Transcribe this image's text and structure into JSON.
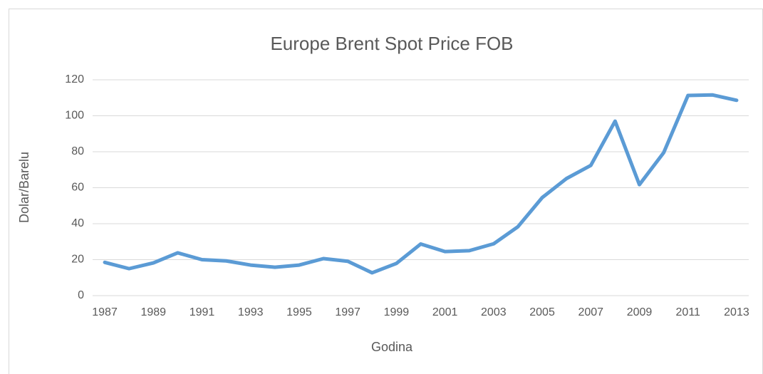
{
  "chart_data": {
    "type": "line",
    "title": "Europe Brent Spot Price FOB",
    "x_label": "Godina",
    "y_label": "Dolar/Barelu",
    "categories": [
      "1987",
      null,
      "1989",
      null,
      "1991",
      null,
      "1993",
      null,
      "1995",
      null,
      "1997",
      null,
      "1999",
      null,
      "2001",
      null,
      "2003",
      null,
      "2005",
      null,
      "2007",
      null,
      "2009",
      null,
      "2011",
      null,
      "2013"
    ],
    "series": [
      {
        "name": "Europe Brent Spot Price FOB",
        "color": "#5b9bd5",
        "values": [
          18.5,
          15,
          18.2,
          23.8,
          20,
          19.3,
          17,
          15.8,
          17,
          20.6,
          19.1,
          12.7,
          17.9,
          28.7,
          24.5,
          25,
          28.8,
          38.3,
          54.5,
          65.1,
          72.4,
          97,
          61.7,
          79.5,
          111.3,
          111.6,
          108.6
        ]
      }
    ],
    "ylim": [
      0,
      120
    ],
    "yticks": [
      0,
      20,
      40,
      60,
      80,
      100,
      120
    ],
    "grid": true
  }
}
